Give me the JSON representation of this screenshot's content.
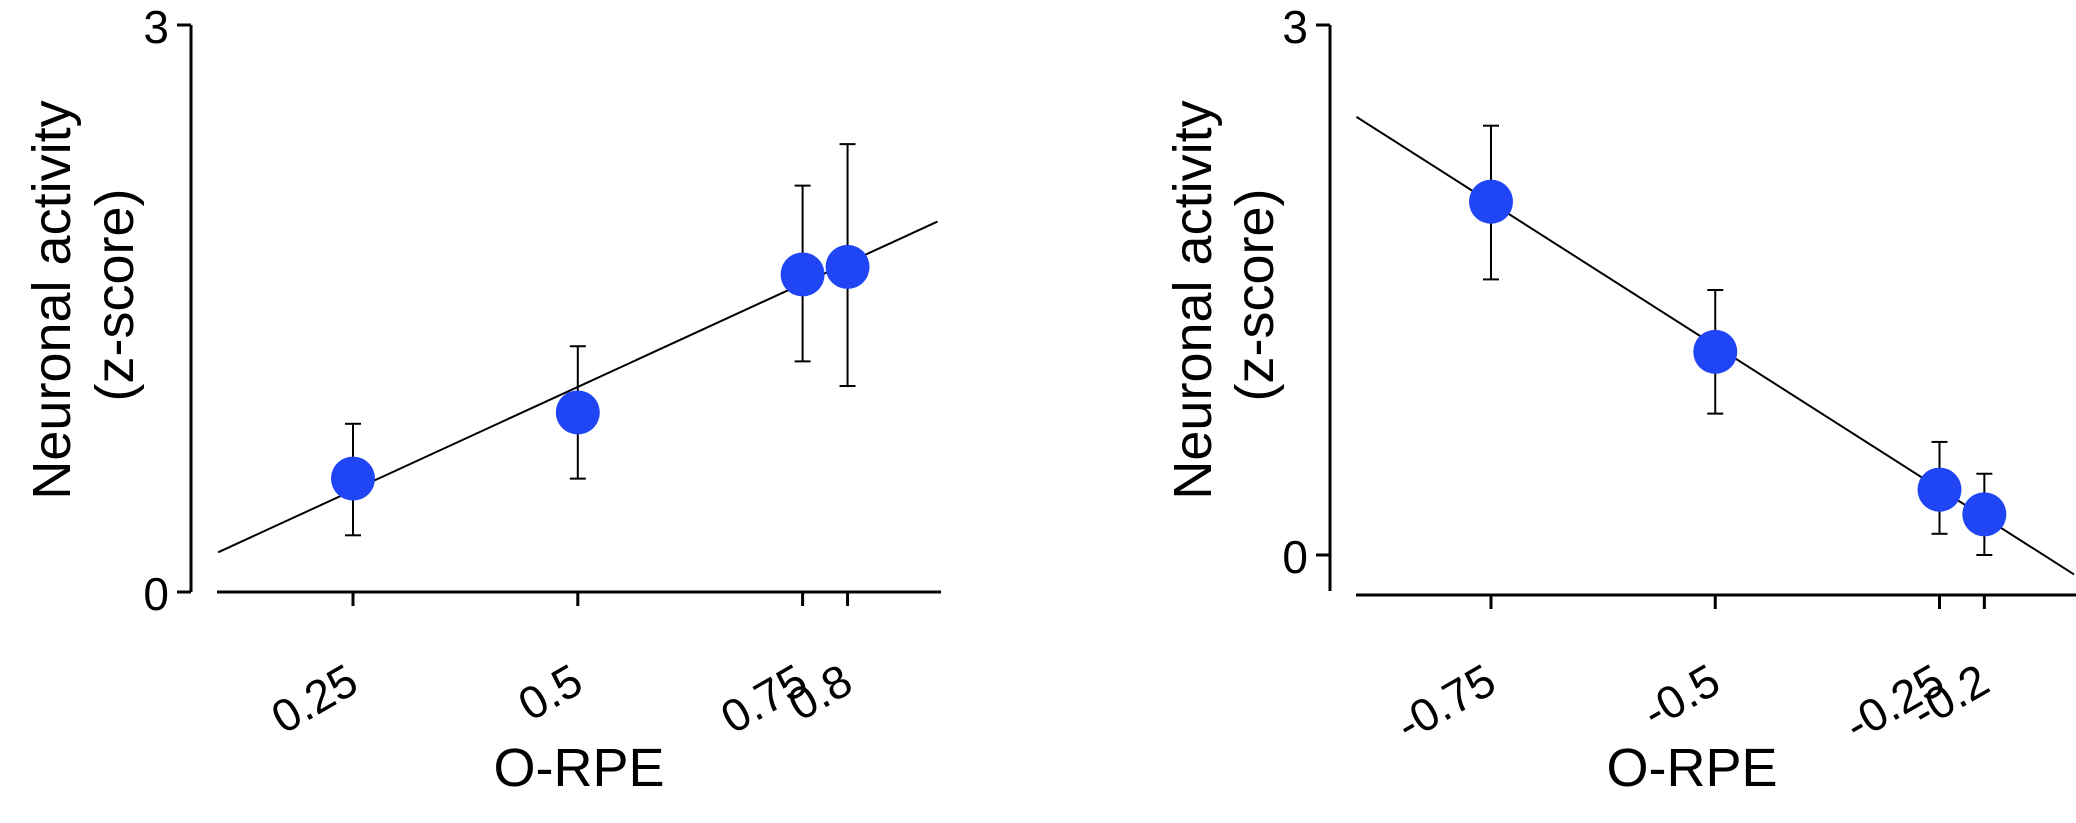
{
  "chart_data": [
    {
      "type": "scatter",
      "xlabel": "O-RPE",
      "ylabel": [
        "Neuronal activity",
        "(z-score)"
      ],
      "ylim": [
        0,
        3
      ],
      "yticks": [
        "0",
        "3"
      ],
      "xticks": [
        {
          "value": 0.25,
          "label": "0.25"
        },
        {
          "value": 0.5,
          "label": "0.5"
        },
        {
          "value": 0.75,
          "label": "0.75"
        },
        {
          "value": 0.8,
          "label": "0.8"
        }
      ],
      "points": [
        {
          "x": 0.25,
          "y": 0.6,
          "err_low": 0.3,
          "err_high": 0.89
        },
        {
          "x": 0.5,
          "y": 0.95,
          "err_low": 0.6,
          "err_high": 1.3
        },
        {
          "x": 0.75,
          "y": 1.68,
          "err_low": 1.22,
          "err_high": 2.15
        },
        {
          "x": 0.8,
          "y": 1.72,
          "err_low": 1.09,
          "err_high": 2.37
        }
      ],
      "fit_line": {
        "x": [
          0.1,
          0.9
        ],
        "y": [
          0.21,
          1.96
        ]
      },
      "grid": false,
      "marker_color": "#1f45f5",
      "line_color": "#000000"
    },
    {
      "type": "scatter",
      "xlabel": "O-RPE",
      "ylabel": [
        "Neuronal activity",
        "(z-score)"
      ],
      "ylim": [
        0,
        3
      ],
      "yticks": [
        "0",
        "3"
      ],
      "xticks": [
        {
          "value": -0.75,
          "label": "-0.75"
        },
        {
          "value": -0.5,
          "label": "-0.5"
        },
        {
          "value": -0.25,
          "label": "-0.25"
        },
        {
          "value": -0.2,
          "label": "-0.2"
        }
      ],
      "points": [
        {
          "x": -0.75,
          "y": 2.0,
          "err_low": 1.56,
          "err_high": 2.43
        },
        {
          "x": -0.5,
          "y": 1.15,
          "err_low": 0.8,
          "err_high": 1.5
        },
        {
          "x": -0.25,
          "y": 0.37,
          "err_low": 0.12,
          "err_high": 0.64
        },
        {
          "x": -0.2,
          "y": 0.23,
          "err_low": 0.0,
          "err_high": 0.46
        }
      ],
      "fit_line": {
        "x": [
          -0.9,
          -0.1
        ],
        "y": [
          2.48,
          -0.11
        ]
      },
      "grid": false,
      "marker_color": "#1f45f5",
      "line_color": "#000000"
    }
  ]
}
